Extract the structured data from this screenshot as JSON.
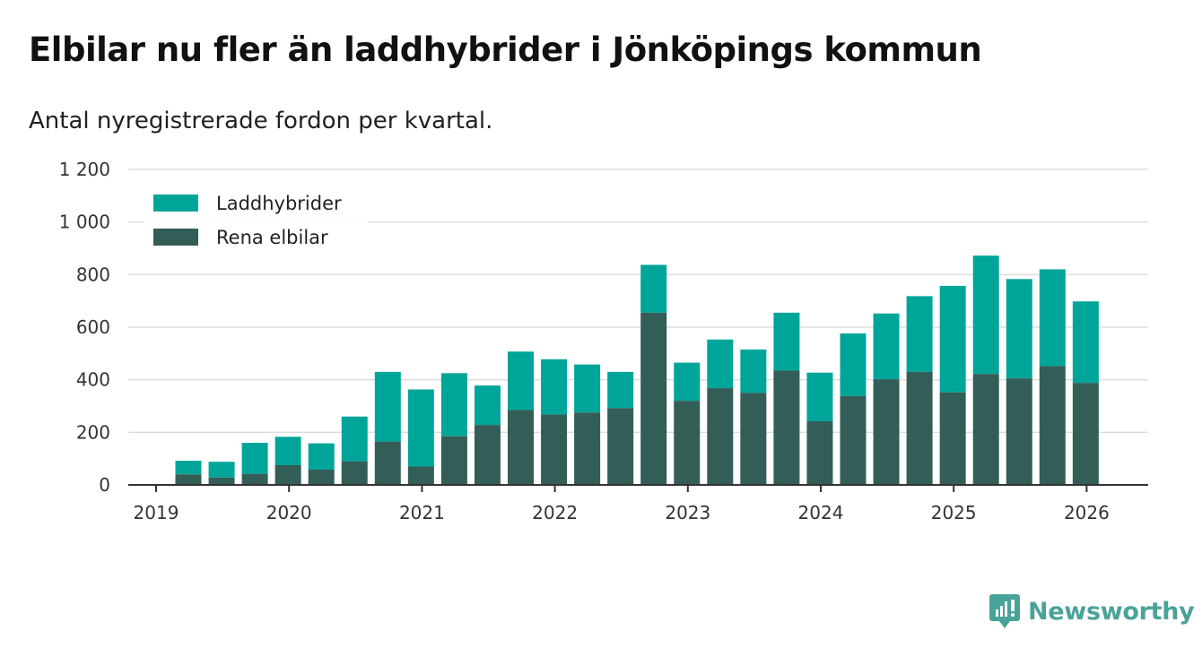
{
  "title": "Elbilar nu fler än laddhybrider i Jönköpings kommun",
  "subtitle": "Antal nyregistrerade fordon per kvartal.",
  "brand": {
    "name": "Newsworthy",
    "color": "#4aa39a",
    "icon": "newsworthy-logo-icon"
  },
  "colors": {
    "laddhybrider": "#00a59a",
    "elbilar": "#335e57",
    "grid": "#dddddd",
    "axis": "#333333"
  },
  "chart_data": {
    "type": "bar",
    "stacked": true,
    "title": "Elbilar nu fler än laddhybrider i Jönköpings kommun",
    "subtitle": "Antal nyregistrerade fordon per kvartal.",
    "xlabel": "",
    "ylabel": "",
    "ylim": [
      0,
      1200
    ],
    "yticks": [
      0,
      200,
      400,
      600,
      800,
      1000,
      1200
    ],
    "ytick_labels": [
      "0",
      "200",
      "400",
      "600",
      "800",
      "1 000",
      "1 200"
    ],
    "xticks": [
      "2019",
      "2020",
      "2021",
      "2022",
      "2023",
      "2024",
      "2025",
      "2026"
    ],
    "grid": true,
    "legend_position": "top-left",
    "categories": [
      "2019 K2",
      "2019 K3",
      "2019 K4",
      "2020 K1",
      "2020 K2",
      "2020 K3",
      "2020 K4",
      "2021 K1",
      "2021 K2",
      "2021 K3",
      "2021 K4",
      "2022 K1",
      "2022 K2",
      "2022 K3",
      "2022 K4",
      "2023 K1",
      "2023 K2",
      "2023 K3",
      "2023 K4",
      "2024 K1",
      "2024 K2",
      "2024 K3",
      "2024 K4",
      "2025 K1",
      "2025 K2",
      "2025 K3",
      "2025 K4",
      "2026 K1"
    ],
    "series": [
      {
        "name": "Rena elbilar",
        "values": [
          40,
          28,
          42,
          75,
          58,
          90,
          165,
          70,
          185,
          228,
          285,
          268,
          275,
          292,
          655,
          320,
          368,
          350,
          435,
          242,
          338,
          402,
          430,
          352,
          422,
          405,
          452,
          388
        ]
      },
      {
        "name": "Laddhybrider",
        "values": [
          52,
          60,
          118,
          108,
          100,
          170,
          265,
          293,
          240,
          150,
          222,
          210,
          183,
          138,
          182,
          145,
          185,
          165,
          220,
          185,
          238,
          250,
          288,
          405,
          450,
          378,
          368,
          310
        ]
      }
    ],
    "legend": [
      "Laddhybrider",
      "Rena elbilar"
    ]
  }
}
